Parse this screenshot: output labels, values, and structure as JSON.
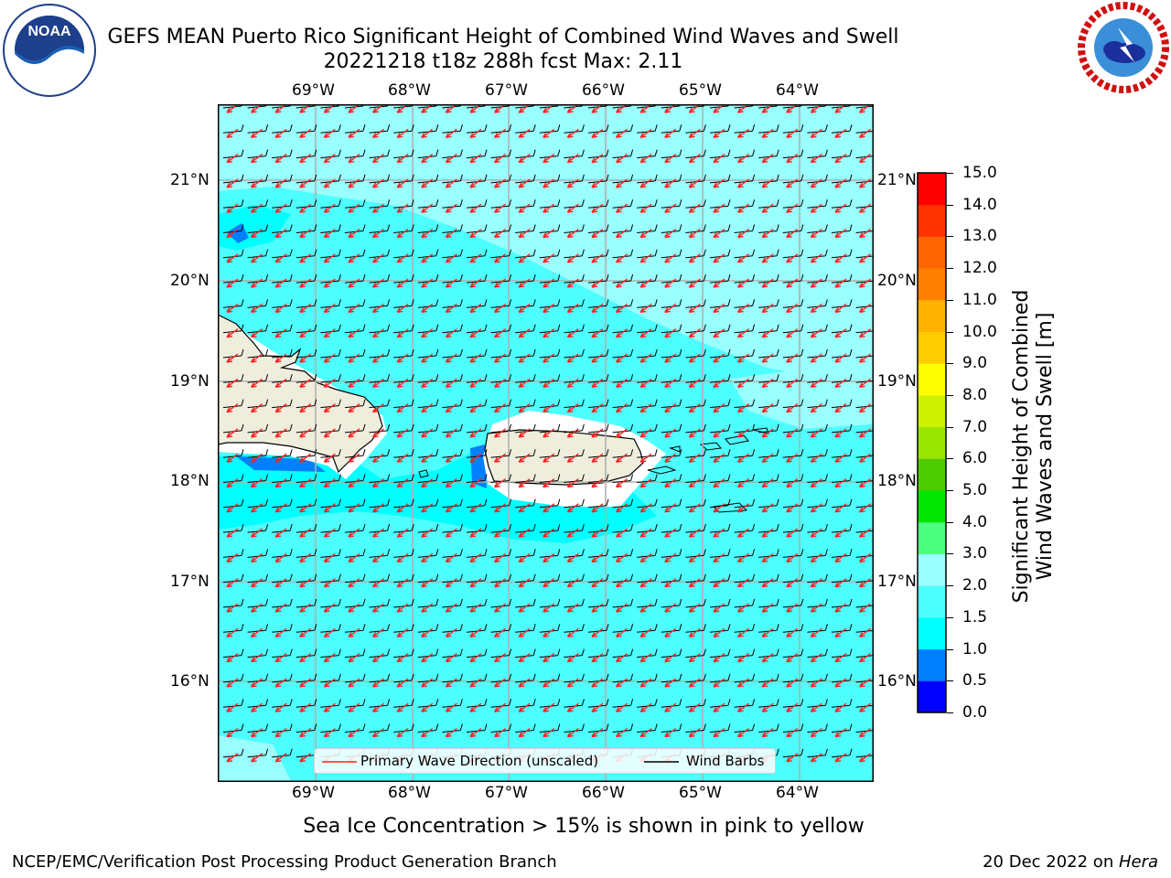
{
  "title": {
    "line1": "GEFS MEAN Puerto Rico Significant Height of Combined Wind Waves and Swell",
    "line2": "20221218 t18z 288h fcst   Max: 2.11"
  },
  "logos": {
    "left": "NOAA",
    "left_ring": "NATIONAL OCEANIC AND ATMOSPHERIC ADMINISTRATION · U.S. DEPARTMENT OF COMMERCE",
    "right_ring": "NATIONAL WEATHER SERVICE"
  },
  "map": {
    "lon_labels": [
      "69°W",
      "68°W",
      "67°W",
      "66°W",
      "65°W",
      "64°W"
    ],
    "lat_labels": [
      "21°N",
      "20°N",
      "19°N",
      "18°N",
      "17°N",
      "16°N"
    ],
    "colors": {
      "land": "#efeedd",
      "sea_bg": "#4dffff",
      "deep_band": "#00ffff",
      "light_band": "#99ffff",
      "blue_patch": "#0080ff",
      "wave_arrow": "#ff2020",
      "wind_barb": "#000000"
    }
  },
  "legend": {
    "primary_wave": "Primary Wave Direction (unscaled)",
    "wind_barbs": "Wind Barbs"
  },
  "colorbar": {
    "label_line1": "Significant Height of Combined",
    "label_line2": "Wind Waves and Swell [m]",
    "ticks": [
      "15.0",
      "14.0",
      "13.0",
      "12.0",
      "11.0",
      "10.0",
      "9.0",
      "8.0",
      "7.0",
      "6.0",
      "5.0",
      "4.0",
      "3.0",
      "2.0",
      "1.5",
      "1.0",
      "0.5",
      "0.0"
    ],
    "colors": [
      "#0000ff",
      "#0080ff",
      "#00ffff",
      "#4dffff",
      "#99ffff",
      "#4dff80",
      "#00e600",
      "#4dcc00",
      "#99e600",
      "#ccf200",
      "#ffff00",
      "#ffcc00",
      "#ffb300",
      "#ff8000",
      "#ff6600",
      "#ff3300",
      "#ff0000"
    ]
  },
  "subtitle": "Sea Ice Concentration > 15% is shown in pink to yellow",
  "footer": {
    "left": "NCEP/EMC/Verification Post Processing Product Generation Branch",
    "right_date": "20 Dec 2022 on ",
    "right_host": "Hera"
  }
}
